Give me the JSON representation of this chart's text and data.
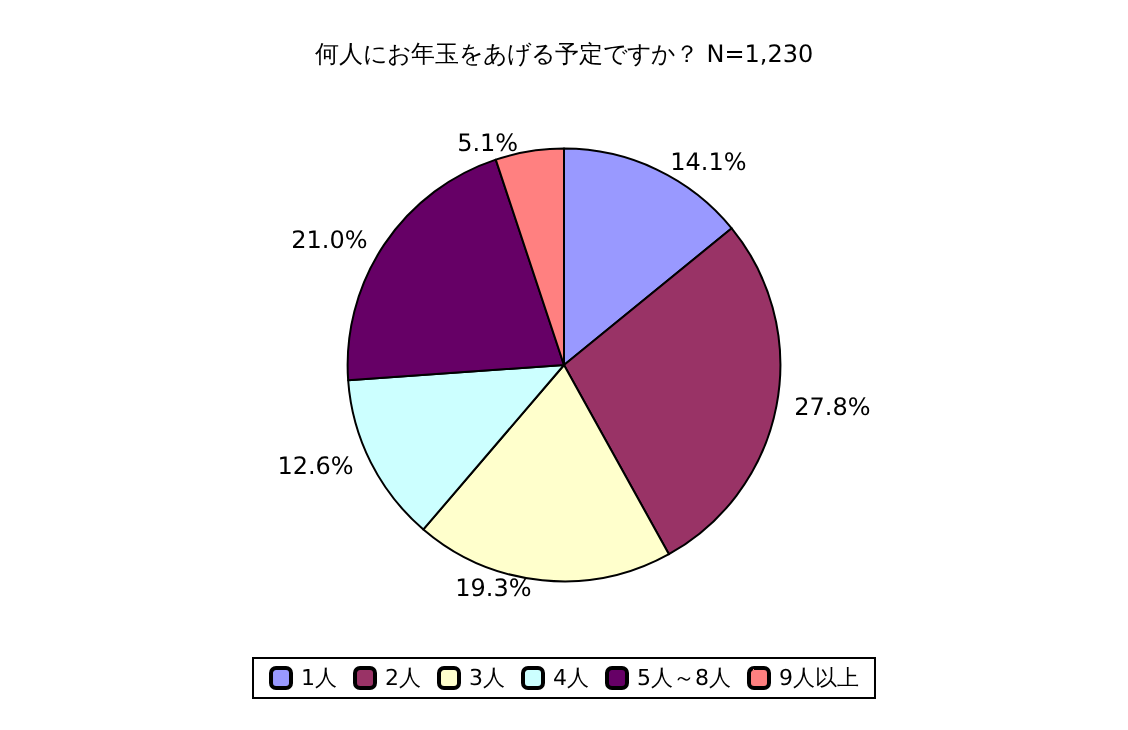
{
  "chart_data": {
    "type": "pie",
    "title": "何人にお年玉をあげる予定ですか？ N=1,230",
    "categories": [
      "1人",
      "2人",
      "3人",
      "4人",
      "5人～8人",
      "9人以上"
    ],
    "values": [
      14.1,
      27.8,
      19.3,
      12.6,
      21.0,
      5.1
    ],
    "colors": [
      "#9999ff",
      "#993366",
      "#ffffcc",
      "#ccffff",
      "#660066",
      "#ff8080"
    ],
    "value_labels": [
      "14.1%",
      "27.8%",
      "19.3%",
      "12.6%",
      "21.0%",
      "5.1%"
    ],
    "legend": "bottom"
  }
}
